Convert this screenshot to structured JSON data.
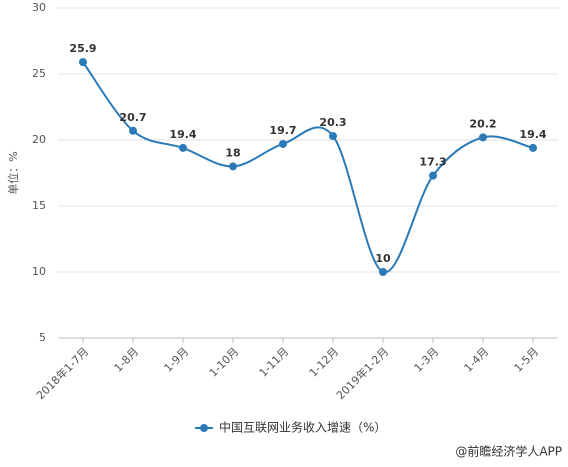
{
  "chart_data": {
    "type": "line",
    "y_label": "单位：%",
    "categories": [
      "2018年1-7月",
      "1-8月",
      "1-9月",
      "1-10月",
      "1-11月",
      "1-12月",
      "2019年1-2月",
      "1-3月",
      "1-4月",
      "1-5月"
    ],
    "series": [
      {
        "name": "中国互联网业务收入增速（%）",
        "color": "#2a7ab8",
        "values": [
          25.9,
          20.7,
          19.4,
          18,
          19.7,
          20.3,
          10,
          17.3,
          20.2,
          19.4
        ]
      }
    ],
    "ylim": [
      5,
      30
    ],
    "yticks": [
      5,
      10,
      15,
      20,
      25,
      30
    ],
    "grid": true,
    "legend": "bottom",
    "source": "@前瞻经济学人APP"
  }
}
